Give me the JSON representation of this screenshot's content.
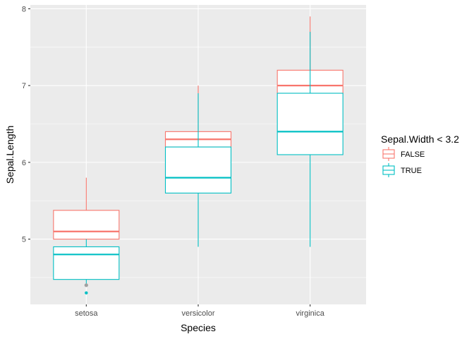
{
  "chart_data": {
    "type": "boxplot",
    "title": "",
    "xlabel": "Species",
    "ylabel": "Sepal.Length",
    "categories": [
      "setosa",
      "versicolor",
      "virginica"
    ],
    "ylim": [
      4.15,
      8.05
    ],
    "yticks": [
      5,
      6,
      7,
      8
    ],
    "yticks_labels": [
      "5",
      "6",
      "7",
      "8"
    ],
    "grid": true,
    "legend": {
      "title": "Sepal.Width < 3.2",
      "position": "right",
      "entries": [
        {
          "label": "FALSE",
          "color": "#F8766D"
        },
        {
          "label": "TRUE",
          "color": "#00BFC4"
        }
      ]
    },
    "series": [
      {
        "name": "FALSE",
        "color": "#F8766D",
        "boxes": [
          {
            "category": "setosa",
            "min": 5.0,
            "q1": 5.0,
            "median": 5.1,
            "q3": 5.375,
            "max": 5.8
          },
          {
            "category": "versicolor",
            "min": 6.2,
            "q1": 6.2,
            "median": 6.3,
            "q3": 6.4,
            "max": 7.0
          },
          {
            "category": "virginica",
            "min": 6.9,
            "q1": 6.9,
            "median": 7.0,
            "q3": 7.2,
            "max": 7.9
          }
        ]
      },
      {
        "name": "TRUE",
        "color": "#00BFC4",
        "boxes": [
          {
            "category": "setosa",
            "min": 4.4,
            "q1": 4.475,
            "median": 4.8,
            "q3": 4.9,
            "max": 5.0,
            "outliers": [
              4.3
            ]
          },
          {
            "category": "versicolor",
            "min": 4.9,
            "q1": 5.6,
            "median": 5.8,
            "q3": 6.2,
            "max": 6.9
          },
          {
            "category": "virginica",
            "min": 4.9,
            "q1": 6.1,
            "median": 6.4,
            "q3": 6.9,
            "max": 7.7
          }
        ]
      }
    ],
    "colors": {
      "panel_background": "#EBEBEB",
      "grid_major": "#FFFFFF",
      "box_fill": "#FFFFFF",
      "false_color": "#F8766D",
      "true_color": "#00BFC4",
      "setosa_outlier_overlap_color": "#A0A0A0"
    }
  }
}
